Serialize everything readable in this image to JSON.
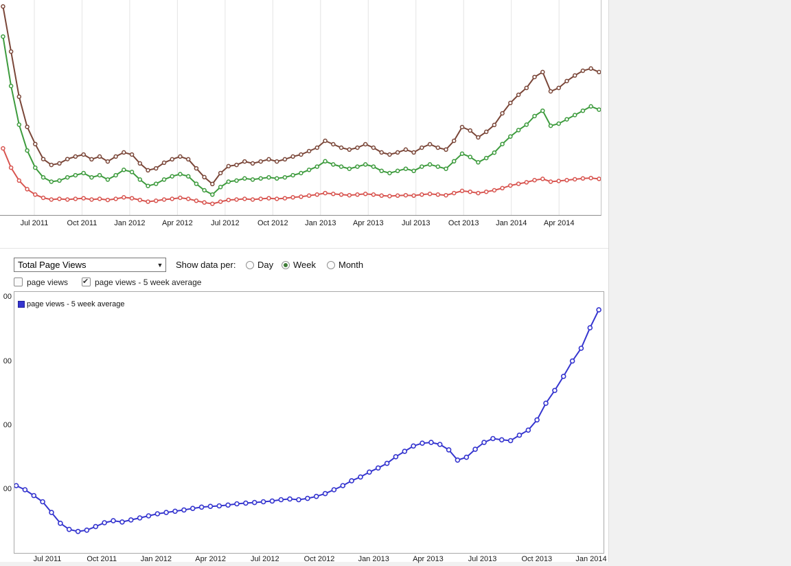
{
  "page": {
    "background_color": "#f1f1f1",
    "content_background": "#ffffff"
  },
  "controls": {
    "metric_select": {
      "value": "Total Page Views"
    },
    "show_data_per_label": "Show data per:",
    "radios": [
      {
        "label": "Day",
        "selected": false
      },
      {
        "label": "Week",
        "selected": true
      },
      {
        "label": "Month",
        "selected": false
      }
    ],
    "checkboxes": [
      {
        "label": "page views",
        "checked": false
      },
      {
        "label": "page views - 5 week average",
        "checked": true
      }
    ]
  },
  "chart_data": [
    {
      "type": "line",
      "title": "",
      "x_ticks": [
        "Jul 2011",
        "Oct 2011",
        "Jan 2012",
        "Apr 2012",
        "Jul 2012",
        "Oct 2012",
        "Jan 2013",
        "Apr 2013",
        "Jul 2013",
        "Oct 2013",
        "Jan 2014",
        "Apr 2014"
      ],
      "ylim": [
        0,
        100
      ],
      "grid_vertical": true,
      "grid_color": "#e4e4e4",
      "tick_start_frac": 0.0571,
      "tick_step_frac": 0.0794,
      "data_x0_frac": 0.005,
      "data_x1_frac": 0.997,
      "line_width": 2,
      "marker_radius": 2.5,
      "marker_stroke_width": 1.5,
      "series": [
        {
          "name": "series-brown",
          "color": "#7a4638",
          "values": [
            97,
            76,
            55,
            41,
            33,
            26,
            23.3,
            24,
            26,
            27.2,
            28.1,
            25.9,
            27.2,
            24.9,
            27.2,
            29.1,
            28.1,
            24,
            20.8,
            21.7,
            24.3,
            25.9,
            27.2,
            25.9,
            21.7,
            17.6,
            14.4,
            19.5,
            22.7,
            23.3,
            24.9,
            24,
            24.9,
            25.9,
            24.9,
            25.9,
            27.2,
            28.1,
            29.7,
            31.3,
            34.5,
            32.9,
            31.3,
            30.4,
            31.3,
            32.9,
            31.3,
            29.1,
            28.1,
            29.1,
            30.4,
            29.1,
            31.3,
            32.9,
            31.3,
            30.4,
            34.5,
            40.9,
            39.3,
            36.1,
            38.7,
            41.9,
            47.3,
            52.1,
            55.9,
            59.1,
            64.2,
            66.5,
            57.5,
            59.1,
            62.3,
            64.9,
            67.1,
            68.1,
            66.5
          ]
        },
        {
          "name": "series-green",
          "color": "#3d9b3d",
          "values": [
            83,
            60,
            42,
            30,
            22,
            17.5,
            15.5,
            16,
            17.5,
            18.5,
            19.5,
            17.5,
            18.5,
            16.5,
            18.5,
            21,
            20,
            16.5,
            13.5,
            14.5,
            16.5,
            18,
            19,
            18,
            14.5,
            11.5,
            9.5,
            13,
            15.5,
            16,
            17,
            16.5,
            17,
            17.5,
            17,
            17.5,
            18.5,
            19.5,
            21,
            22.5,
            25,
            23.5,
            22.5,
            21.5,
            22.5,
            23.5,
            22.5,
            20.5,
            19.5,
            20.5,
            21.5,
            20.5,
            22.5,
            23.5,
            22.5,
            21.5,
            25,
            28.5,
            27,
            24.5,
            26.5,
            29,
            33,
            36.5,
            39.5,
            42,
            46,
            48.5,
            41.5,
            42.5,
            44.5,
            46.5,
            48.5,
            50.5,
            49
          ]
        },
        {
          "name": "series-red",
          "color": "#d8544f",
          "values": [
            31,
            22,
            16,
            12,
            9.5,
            8,
            7.2,
            7.5,
            7.2,
            7.5,
            7.8,
            7.2,
            7.5,
            7,
            7.5,
            8.2,
            7.8,
            7,
            6.2,
            6.6,
            7.2,
            7.5,
            8,
            7.5,
            6.6,
            5.8,
            5.2,
            6.2,
            7,
            7.2,
            7.5,
            7.2,
            7.5,
            7.8,
            7.5,
            7.8,
            8.2,
            8.5,
            9,
            9.5,
            10.2,
            9.8,
            9.5,
            9.2,
            9.5,
            9.8,
            9.5,
            9,
            8.8,
            9,
            9.2,
            9,
            9.5,
            9.8,
            9.5,
            9.2,
            10.2,
            11.2,
            10.8,
            10.2,
            10.8,
            11.5,
            12.5,
            13.7,
            14.5,
            15.2,
            16.2,
            16.8,
            15.5,
            15.8,
            16.2,
            16.6,
            17,
            17.2,
            16.8
          ]
        }
      ]
    },
    {
      "type": "line",
      "title": "",
      "x_ticks": [
        "Jul 2011",
        "Oct 2011",
        "Jan 2012",
        "Apr 2012",
        "Jul 2012",
        "Oct 2012",
        "Jan 2013",
        "Apr 2013",
        "Jul 2013",
        "Oct 2013",
        "Jan 2014"
      ],
      "ylim": [
        0,
        102
      ],
      "grid_vertical": false,
      "grid_color": "#f0f0f0",
      "tick_start_frac": 0.056,
      "tick_step_frac": 0.0923,
      "data_x0_frac": 0.003,
      "data_x1_frac": 0.992,
      "line_width": 2,
      "marker_radius": 3,
      "marker_stroke_width": 1.6,
      "y_ticks": [
        {
          "label": "00",
          "value": 25
        },
        {
          "label": "00",
          "value": 50
        },
        {
          "label": "00",
          "value": 75
        },
        {
          "label": "00",
          "value": 100
        }
      ],
      "series": [
        {
          "name": "page views - 5 week average",
          "color": "#3535cf",
          "values": [
            26.3,
            24.7,
            22.4,
            20,
            15.8,
            11.6,
            9.2,
            8.4,
            8.9,
            10.3,
            11.8,
            12.6,
            12.1,
            12.9,
            13.7,
            14.5,
            15.3,
            15.8,
            16.3,
            16.8,
            17.4,
            17.9,
            18.2,
            18.4,
            18.7,
            19.2,
            19.5,
            19.7,
            20,
            20.3,
            20.8,
            21.1,
            20.8,
            21.3,
            22.1,
            23.2,
            24.7,
            26.3,
            28.2,
            29.7,
            31.6,
            33.2,
            35,
            37.6,
            39.7,
            41.8,
            42.9,
            43.2,
            42.4,
            40.3,
            36.3,
            37.4,
            40.5,
            43.2,
            44.7,
            44.2,
            43.9,
            46,
            48,
            52,
            58.5,
            63.5,
            69,
            75,
            80,
            88,
            95
          ]
        }
      ]
    }
  ]
}
